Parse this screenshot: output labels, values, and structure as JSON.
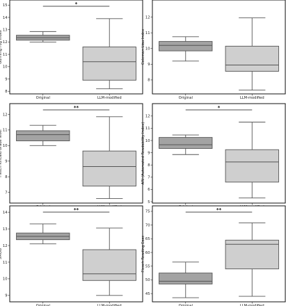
{
  "chart_data": [
    {
      "type": "box",
      "ylabel": "Gunning Fog Index",
      "categories": [
        "Original",
        "LLM-modified"
      ],
      "ylim": [
        7.9,
        15.3
      ],
      "yticks": [
        8,
        9,
        10,
        11,
        12,
        13,
        14,
        15
      ],
      "boxes": [
        {
          "whisker_low": 12.0,
          "q1": 12.15,
          "median": 12.35,
          "q3": 12.55,
          "whisker_high": 12.85
        },
        {
          "whisker_low": 8.2,
          "q1": 8.9,
          "median": 10.4,
          "q3": 11.6,
          "whisker_high": 13.9
        }
      ],
      "significance": "*",
      "colors": [
        "#a3a3a3",
        "#cfcfcf"
      ]
    },
    {
      "type": "box",
      "ylabel": "Coleman Liau Index",
      "categories": [
        "Original",
        "LLM-modified"
      ],
      "ylim": [
        7.2,
        13.0
      ],
      "yticks": [
        8,
        9,
        10,
        11,
        12
      ],
      "boxes": [
        {
          "whisker_low": 9.2,
          "q1": 9.85,
          "median": 10.2,
          "q3": 10.45,
          "whisker_high": 10.75
        },
        {
          "whisker_low": 7.35,
          "q1": 8.55,
          "median": 8.95,
          "q3": 10.15,
          "whisker_high": 11.95
        }
      ],
      "significance": "",
      "colors": [
        "#a3a3a3",
        "#cfcfcf"
      ]
    },
    {
      "type": "box",
      "ylabel": "Flesch Kincaid Grade level",
      "categories": [
        "Original",
        "LLM-modified"
      ],
      "ylim": [
        6.4,
        12.6
      ],
      "yticks": [
        7,
        8,
        9,
        10,
        11,
        12
      ],
      "boxes": [
        {
          "whisker_low": 10.0,
          "q1": 10.3,
          "median": 10.7,
          "q3": 10.95,
          "whisker_high": 11.3
        },
        {
          "whisker_low": 6.6,
          "q1": 7.4,
          "median": 8.65,
          "q3": 9.65,
          "whisker_high": 11.85
        }
      ],
      "significance": "**",
      "colors": [
        "#a3a3a3",
        "#cfcfcf"
      ]
    },
    {
      "type": "box",
      "ylabel": "ARI (Automated Readability Index)",
      "categories": [
        "Original",
        "LLM-modified"
      ],
      "ylim": [
        5.0,
        12.9
      ],
      "yticks": [
        5,
        6,
        7,
        8,
        9,
        10,
        11,
        12
      ],
      "boxes": [
        {
          "whisker_low": 8.85,
          "q1": 9.35,
          "median": 9.65,
          "q3": 10.25,
          "whisker_high": 10.45
        },
        {
          "whisker_low": 5.3,
          "q1": 6.6,
          "median": 8.25,
          "q3": 9.25,
          "whisker_high": 11.5
        }
      ],
      "significance": "*",
      "colors": [
        "#a3a3a3",
        "#cfcfcf"
      ]
    },
    {
      "type": "box",
      "ylabel": "SMOG",
      "categories": [
        "Original",
        "LLM-modified"
      ],
      "ylim": [
        8.7,
        14.3
      ],
      "yticks": [
        9,
        10,
        11,
        12,
        13,
        14
      ],
      "boxes": [
        {
          "whisker_low": 12.1,
          "q1": 12.35,
          "median": 12.55,
          "q3": 12.75,
          "whisker_high": 13.3
        },
        {
          "whisker_low": 9.0,
          "q1": 9.9,
          "median": 10.3,
          "q3": 11.75,
          "whisker_high": 13.05
        }
      ],
      "significance": "**",
      "colors": [
        "#a3a3a3",
        "#cfcfcf"
      ]
    },
    {
      "type": "box",
      "ylabel": "Flesch Reading Ease",
      "categories": [
        "Original",
        "LLM-modified"
      ],
      "ylim": [
        42.5,
        76.5
      ],
      "yticks": [
        45,
        50,
        55,
        60,
        65,
        70,
        75
      ],
      "boxes": [
        {
          "whisker_low": 43.5,
          "q1": 48.5,
          "median": 49.5,
          "q3": 52.5,
          "whisker_high": 56.5
        },
        {
          "whisker_low": 44.0,
          "q1": 54.0,
          "median": 63.0,
          "q3": 64.5,
          "whisker_high": 70.8
        }
      ],
      "significance": "**",
      "colors": [
        "#a3a3a3",
        "#cfcfcf"
      ]
    }
  ]
}
